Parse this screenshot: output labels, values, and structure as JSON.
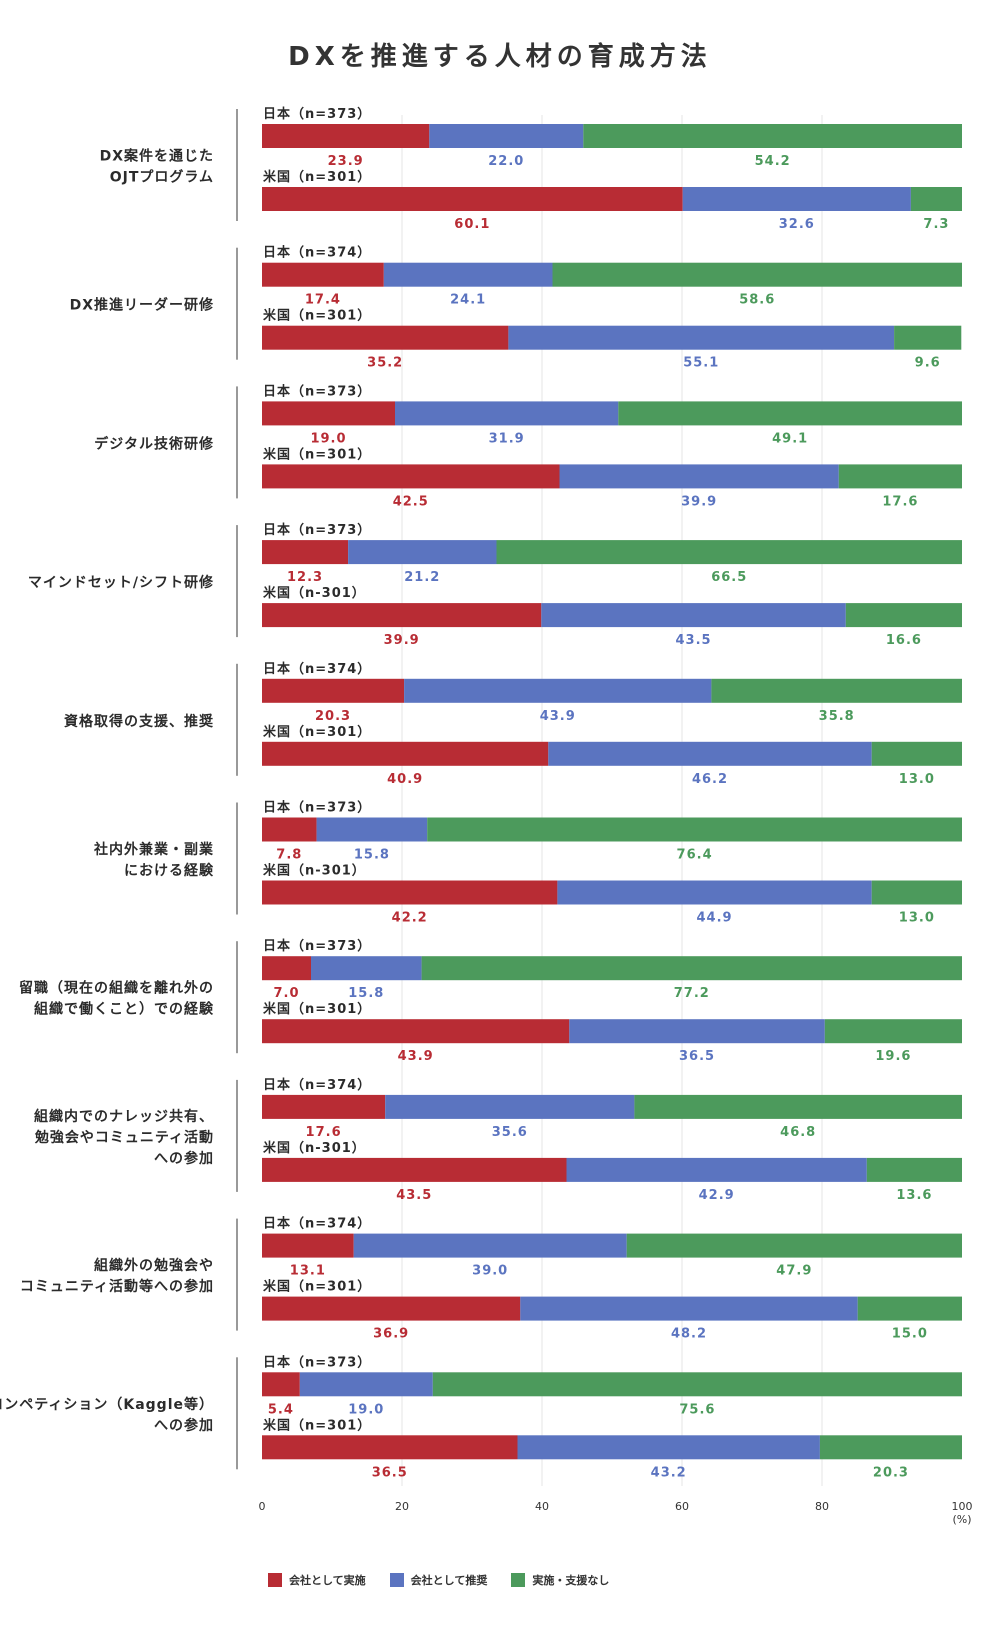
{
  "chart_data": {
    "type": "bar",
    "title": "DXを推進する人材の育成方法",
    "stacked": true,
    "orientation": "horizontal",
    "unit": "(%)",
    "xlim": [
      0,
      100
    ],
    "x_ticks": [
      0,
      20,
      40,
      60,
      80,
      100
    ],
    "grid": true,
    "legend_position": "bottom-left",
    "colors": [
      "#b82c34",
      "#5b74c0",
      "#4c9a5c"
    ],
    "series": [
      {
        "name": "会社として実施"
      },
      {
        "name": "会社として推奨"
      },
      {
        "name": "実施・支援なし"
      }
    ],
    "groups": [
      {
        "label_lines": [
          "DX案件を通じた",
          "OJTプログラム"
        ],
        "rows": [
          {
            "label": "日本（n=373）",
            "values": [
              23.9,
              22.0,
              54.2
            ]
          },
          {
            "label": "米国（n=301）",
            "values": [
              60.1,
              32.6,
              7.3
            ]
          }
        ]
      },
      {
        "label_lines": [
          "DX推進リーダー研修"
        ],
        "rows": [
          {
            "label": "日本（n=374）",
            "values": [
              17.4,
              24.1,
              58.6
            ]
          },
          {
            "label": "米国（n=301）",
            "values": [
              35.2,
              55.1,
              9.6
            ]
          }
        ]
      },
      {
        "label_lines": [
          "デジタル技術研修"
        ],
        "rows": [
          {
            "label": "日本（n=373）",
            "values": [
              19.0,
              31.9,
              49.1
            ]
          },
          {
            "label": "米国（n=301）",
            "values": [
              42.5,
              39.9,
              17.6
            ]
          }
        ]
      },
      {
        "label_lines": [
          "マインドセット/シフト研修"
        ],
        "rows": [
          {
            "label": "日本（n=373）",
            "values": [
              12.3,
              21.2,
              66.5
            ]
          },
          {
            "label": "米国（n-301）",
            "values": [
              39.9,
              43.5,
              16.6
            ]
          }
        ]
      },
      {
        "label_lines": [
          "資格取得の支援、推奨"
        ],
        "rows": [
          {
            "label": "日本（n=374）",
            "values": [
              20.3,
              43.9,
              35.8
            ]
          },
          {
            "label": "米国（n=301）",
            "values": [
              40.9,
              46.2,
              13.0
            ]
          }
        ]
      },
      {
        "label_lines": [
          "社内外兼業・副業",
          "における経験"
        ],
        "rows": [
          {
            "label": "日本（n=373）",
            "values": [
              7.8,
              15.8,
              76.4
            ]
          },
          {
            "label": "米国（n-301）",
            "values": [
              42.2,
              44.9,
              13.0
            ]
          }
        ]
      },
      {
        "label_lines": [
          "留職（現在の組織を離れ外の",
          "組織で働くこと）での経験"
        ],
        "rows": [
          {
            "label": "日本（n=373）",
            "values": [
              7.0,
              15.8,
              77.2
            ]
          },
          {
            "label": "米国（n=301）",
            "values": [
              43.9,
              36.5,
              19.6
            ]
          }
        ]
      },
      {
        "label_lines": [
          "組織内でのナレッジ共有、",
          "勉強会やコミュニティ活動",
          "への参加"
        ],
        "rows": [
          {
            "label": "日本（n=374）",
            "values": [
              17.6,
              35.6,
              46.8
            ]
          },
          {
            "label": "米国（n-301）",
            "values": [
              43.5,
              42.9,
              13.6
            ]
          }
        ]
      },
      {
        "label_lines": [
          "組織外の勉強会や",
          "コミュニティ活動等への参加"
        ],
        "rows": [
          {
            "label": "日本（n=374）",
            "values": [
              13.1,
              39.0,
              47.9
            ]
          },
          {
            "label": "米国（n=301）",
            "values": [
              36.9,
              48.2,
              15.0
            ]
          }
        ]
      },
      {
        "label_lines": [
          "コンペティション（Kaggle等）",
          "への参加"
        ],
        "rows": [
          {
            "label": "日本（n=373）",
            "values": [
              5.4,
              19.0,
              75.6
            ]
          },
          {
            "label": "米国（n=301）",
            "values": [
              36.5,
              43.2,
              20.3
            ]
          }
        ]
      }
    ]
  }
}
